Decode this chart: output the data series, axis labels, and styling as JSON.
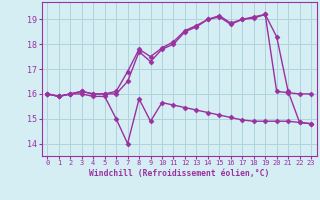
{
  "series1_x": [
    0,
    1,
    2,
    3,
    4,
    5,
    6,
    7,
    8,
    9,
    10,
    11,
    12,
    13,
    14,
    15,
    16,
    17,
    18,
    19,
    20,
    21,
    22,
    23
  ],
  "series1_y": [
    16.0,
    15.9,
    16.0,
    16.1,
    16.0,
    16.0,
    16.1,
    16.9,
    17.8,
    17.5,
    17.85,
    18.1,
    18.55,
    18.75,
    19.0,
    19.15,
    18.85,
    19.0,
    19.05,
    19.2,
    16.1,
    16.05,
    16.0,
    16.0
  ],
  "series2_x": [
    0,
    1,
    2,
    3,
    4,
    5,
    6,
    7,
    8,
    9,
    10,
    11,
    12,
    13,
    14,
    15,
    16,
    17,
    18,
    19,
    20,
    21,
    22,
    23
  ],
  "series2_y": [
    16.0,
    15.9,
    16.0,
    16.1,
    16.0,
    16.0,
    16.0,
    16.5,
    17.7,
    17.3,
    17.8,
    18.0,
    18.5,
    18.7,
    19.0,
    19.1,
    18.8,
    19.0,
    19.1,
    19.2,
    18.3,
    16.1,
    14.85,
    14.8
  ],
  "series3_x": [
    0,
    1,
    2,
    3,
    4,
    5,
    6,
    7,
    8,
    9,
    10,
    11,
    12,
    13,
    14,
    15,
    16,
    17,
    18,
    19,
    20,
    21,
    22,
    23
  ],
  "series3_y": [
    16.0,
    15.9,
    16.0,
    16.0,
    15.9,
    15.9,
    15.0,
    14.0,
    15.8,
    14.9,
    15.65,
    15.55,
    15.45,
    15.35,
    15.25,
    15.15,
    15.05,
    14.95,
    14.9,
    14.9,
    14.9,
    14.9,
    14.85,
    14.8
  ],
  "line_color": "#9b30a0",
  "bg_color": "#d4eef4",
  "grid_color": "#aed4dc",
  "xlabel": "Windchill (Refroidissement éolien,°C)",
  "ylim": [
    13.5,
    19.7
  ],
  "xlim": [
    -0.5,
    23.5
  ],
  "yticks": [
    14,
    15,
    16,
    17,
    18,
    19
  ],
  "xticks": [
    0,
    1,
    2,
    3,
    4,
    5,
    6,
    7,
    8,
    9,
    10,
    11,
    12,
    13,
    14,
    15,
    16,
    17,
    18,
    19,
    20,
    21,
    22,
    23
  ],
  "marker": "D",
  "markersize": 2.5,
  "linewidth": 1.0
}
